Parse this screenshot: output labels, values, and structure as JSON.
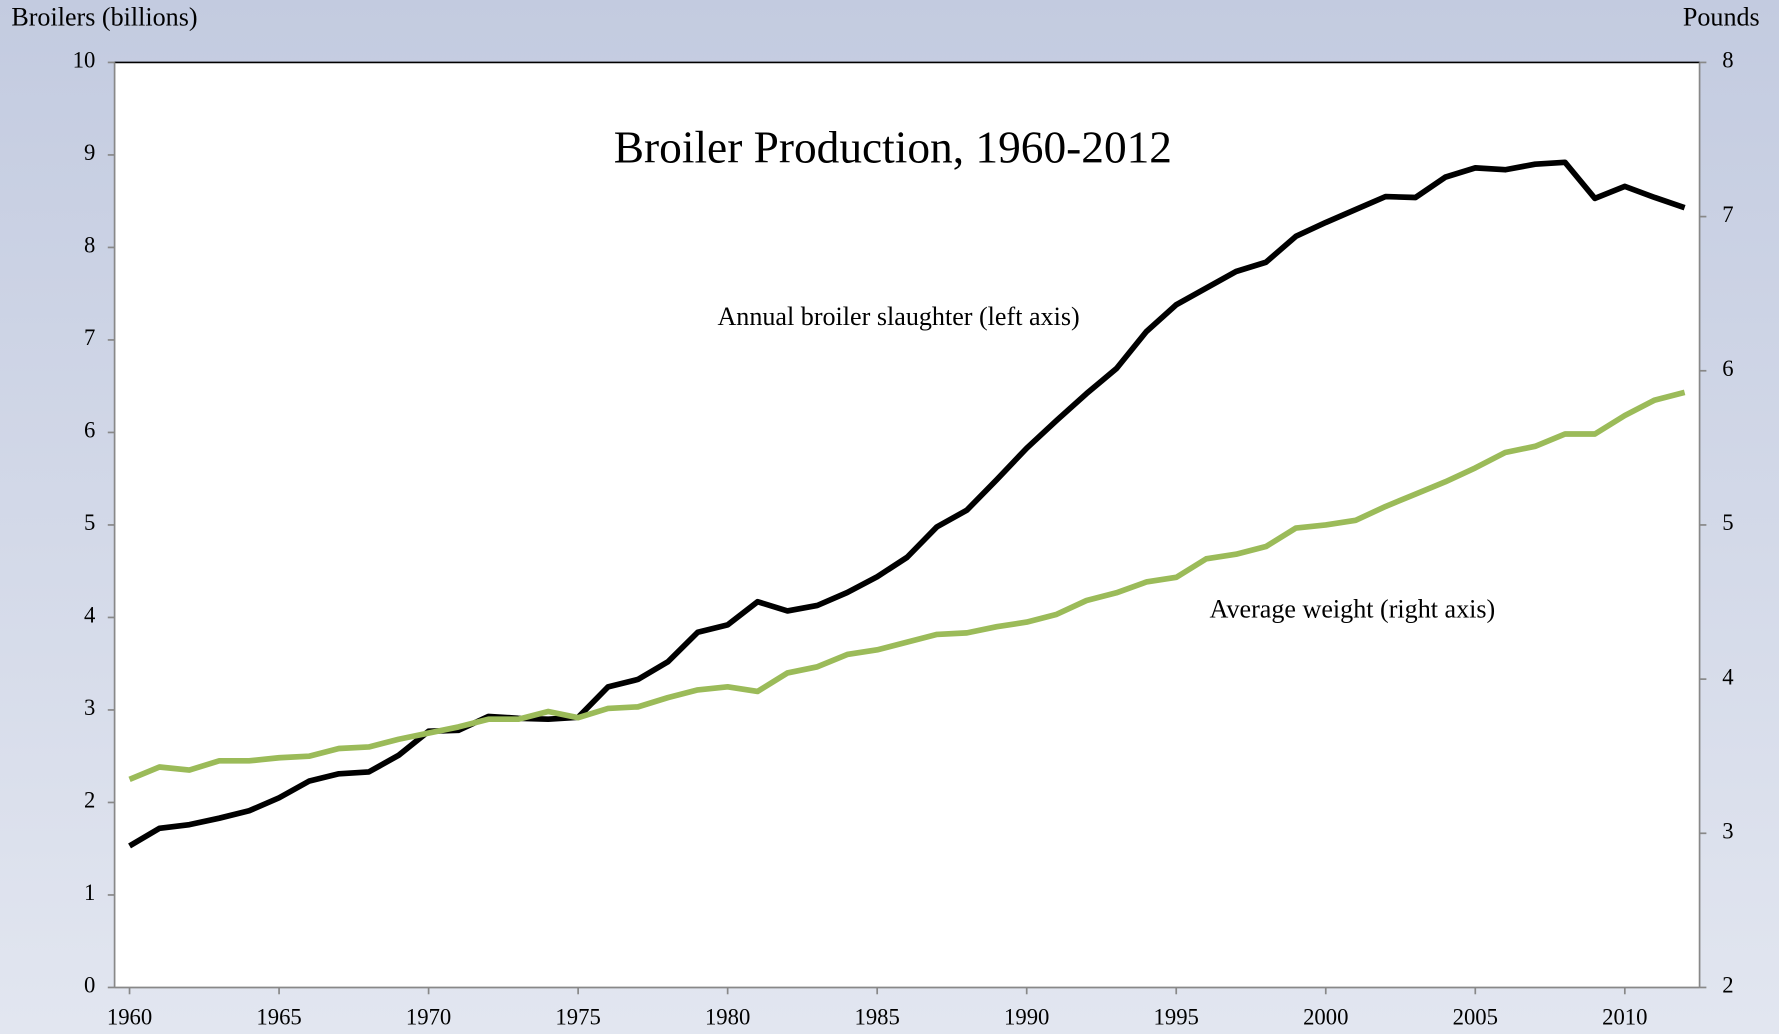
{
  "chart_data": {
    "type": "line",
    "title": "Broiler Production, 1960-2012",
    "y_label": "Broilers (billions)",
    "y2_label": "Pounds",
    "annotations": [
      "Annual broiler slaughter (left axis)",
      "Average weight (right axis)"
    ],
    "x": [
      1960,
      1961,
      1962,
      1963,
      1964,
      1965,
      1966,
      1967,
      1968,
      1969,
      1970,
      1971,
      1972,
      1973,
      1974,
      1975,
      1976,
      1977,
      1978,
      1979,
      1980,
      1981,
      1982,
      1983,
      1984,
      1985,
      1986,
      1987,
      1988,
      1989,
      1990,
      1991,
      1992,
      1993,
      1994,
      1995,
      1996,
      1997,
      1998,
      1999,
      2000,
      2001,
      2002,
      2003,
      2004,
      2005,
      2006,
      2007,
      2008,
      2009,
      2010,
      2011,
      2012
    ],
    "xlim": [
      1959.5,
      2012.5
    ],
    "xticks": [
      1960,
      1965,
      1970,
      1975,
      1980,
      1985,
      1990,
      1995,
      2000,
      2005,
      2010
    ],
    "ylim": [
      0,
      10
    ],
    "yticks": [
      0,
      1,
      2,
      3,
      4,
      5,
      6,
      7,
      8,
      9,
      10
    ],
    "y2lim": [
      2,
      8
    ],
    "y2ticks": [
      2,
      3,
      4,
      5,
      6,
      7,
      8
    ],
    "series": [
      {
        "name": "Annual broiler slaughter",
        "color": "#000000",
        "axis": "y",
        "values": [
          1.53,
          1.72,
          1.76,
          1.83,
          1.91,
          2.05,
          2.23,
          2.31,
          2.33,
          2.51,
          2.77,
          2.78,
          2.93,
          2.91,
          2.9,
          2.92,
          3.25,
          3.33,
          3.52,
          3.84,
          3.92,
          4.17,
          4.07,
          4.13,
          4.27,
          4.44,
          4.65,
          4.98,
          5.16,
          5.49,
          5.83,
          6.13,
          6.42,
          6.69,
          7.09,
          7.38,
          7.56,
          7.74,
          7.84,
          8.12,
          8.27,
          8.41,
          8.55,
          8.54,
          8.76,
          8.86,
          8.84,
          8.9,
          8.92,
          8.53,
          8.66,
          8.54,
          8.43
        ]
      },
      {
        "name": "Average weight",
        "color": "#9bbb59",
        "axis": "y2",
        "values": [
          3.35,
          3.43,
          3.41,
          3.47,
          3.47,
          3.49,
          3.5,
          3.55,
          3.56,
          3.61,
          3.65,
          3.69,
          3.74,
          3.74,
          3.79,
          3.75,
          3.81,
          3.82,
          3.88,
          3.93,
          3.95,
          3.92,
          4.04,
          4.08,
          4.16,
          4.19,
          4.24,
          4.29,
          4.3,
          4.34,
          4.37,
          4.42,
          4.51,
          4.56,
          4.63,
          4.66,
          4.78,
          4.81,
          4.86,
          4.98,
          5.0,
          5.03,
          5.12,
          5.2,
          5.28,
          5.37,
          5.47,
          5.51,
          5.59,
          5.59,
          5.71,
          5.81,
          5.86
        ]
      }
    ]
  }
}
